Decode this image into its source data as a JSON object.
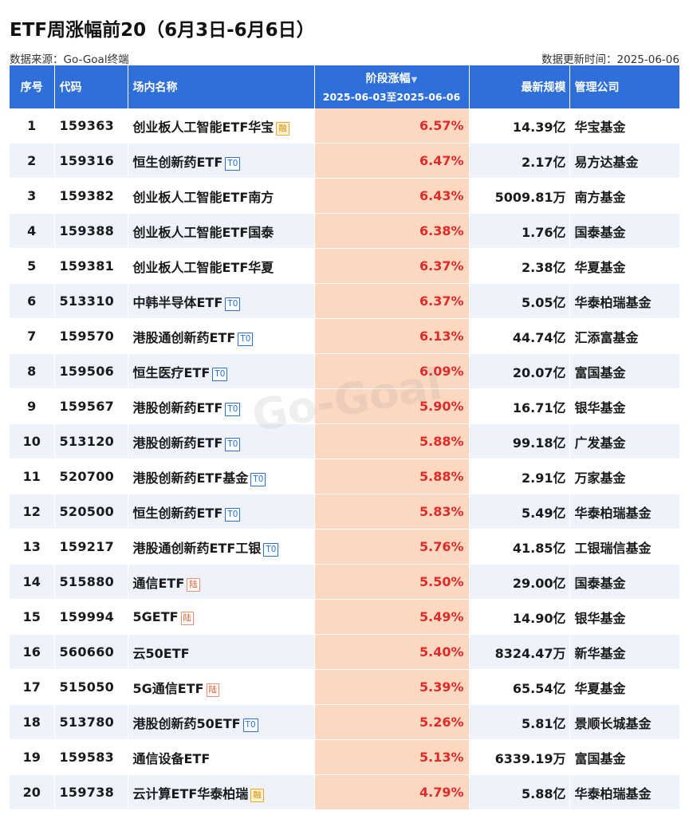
{
  "title": "ETF周涨幅前20（6月3日-6月6日）",
  "source": "数据来源：Go-Goal终端",
  "updated": "数据更新时间：2025-06-06",
  "watermark": "Go-Goal",
  "header": {
    "num": "序号",
    "code": "代码",
    "name": "场内名称",
    "change": "阶段涨幅",
    "change_range": "2025-06-03至2025-06-06",
    "size": "最新规模",
    "company": "管理公司"
  },
  "colors": {
    "header_bg": "#2e6fd9",
    "change_bg": "#fcd8c0",
    "change_text": "#e02a2a",
    "stripe": "#eef2fb"
  },
  "rows": [
    {
      "num": "1",
      "code": "159363",
      "name": "创业板人工智能ETF华宝",
      "badge": "融",
      "badge_type": "rong",
      "change": "6.57%",
      "size": "14.39亿",
      "company": "华宝基金"
    },
    {
      "num": "2",
      "code": "159316",
      "name": "恒生创新药ETF",
      "badge": "T0",
      "badge_type": "t0",
      "change": "6.47%",
      "size": "2.17亿",
      "company": "易方达基金"
    },
    {
      "num": "3",
      "code": "159382",
      "name": "创业板人工智能ETF南方",
      "badge": "",
      "badge_type": "",
      "change": "6.43%",
      "size": "5009.81万",
      "company": "南方基金"
    },
    {
      "num": "4",
      "code": "159388",
      "name": "创业板人工智能ETF国泰",
      "badge": "",
      "badge_type": "",
      "change": "6.38%",
      "size": "1.76亿",
      "company": "国泰基金"
    },
    {
      "num": "5",
      "code": "159381",
      "name": "创业板人工智能ETF华夏",
      "badge": "",
      "badge_type": "",
      "change": "6.37%",
      "size": "2.38亿",
      "company": "华夏基金"
    },
    {
      "num": "6",
      "code": "513310",
      "name": "中韩半导体ETF",
      "badge": "T0",
      "badge_type": "t0",
      "change": "6.37%",
      "size": "5.05亿",
      "company": "华泰柏瑞基金"
    },
    {
      "num": "7",
      "code": "159570",
      "name": "港股通创新药ETF",
      "badge": "T0",
      "badge_type": "t0",
      "change": "6.13%",
      "size": "44.74亿",
      "company": "汇添富基金"
    },
    {
      "num": "8",
      "code": "159506",
      "name": "恒生医疗ETF",
      "badge": "T0",
      "badge_type": "t0",
      "change": "6.09%",
      "size": "20.07亿",
      "company": "富国基金"
    },
    {
      "num": "9",
      "code": "159567",
      "name": "港股创新药ETF",
      "badge": "T0",
      "badge_type": "t0",
      "change": "5.90%",
      "size": "16.71亿",
      "company": "银华基金"
    },
    {
      "num": "10",
      "code": "513120",
      "name": "港股创新药ETF",
      "badge": "T0",
      "badge_type": "t0",
      "change": "5.88%",
      "size": "99.18亿",
      "company": "广发基金"
    },
    {
      "num": "11",
      "code": "520700",
      "name": "港股创新药ETF基金",
      "badge": "T0",
      "badge_type": "t0",
      "change": "5.88%",
      "size": "2.91亿",
      "company": "万家基金"
    },
    {
      "num": "12",
      "code": "520500",
      "name": "恒生创新药ETF",
      "badge": "T0",
      "badge_type": "t0",
      "change": "5.83%",
      "size": "5.49亿",
      "company": "华泰柏瑞基金"
    },
    {
      "num": "13",
      "code": "159217",
      "name": "港股通创新药ETF工银",
      "badge": "T0",
      "badge_type": "t0",
      "change": "5.76%",
      "size": "41.85亿",
      "company": "工银瑞信基金"
    },
    {
      "num": "14",
      "code": "515880",
      "name": "通信ETF",
      "badge": "陆",
      "badge_type": "lu",
      "change": "5.50%",
      "size": "29.00亿",
      "company": "国泰基金"
    },
    {
      "num": "15",
      "code": "159994",
      "name": "5GETF",
      "badge": "陆",
      "badge_type": "lu",
      "change": "5.49%",
      "size": "14.90亿",
      "company": "银华基金"
    },
    {
      "num": "16",
      "code": "560660",
      "name": "云50ETF",
      "badge": "",
      "badge_type": "",
      "change": "5.40%",
      "size": "8324.47万",
      "company": "新华基金"
    },
    {
      "num": "17",
      "code": "515050",
      "name": "5G通信ETF",
      "badge": "陆",
      "badge_type": "lu",
      "change": "5.39%",
      "size": "65.54亿",
      "company": "华夏基金"
    },
    {
      "num": "18",
      "code": "513780",
      "name": "港股创新药50ETF",
      "badge": "T0",
      "badge_type": "t0",
      "change": "5.26%",
      "size": "5.81亿",
      "company": "景顺长城基金"
    },
    {
      "num": "19",
      "code": "159583",
      "name": "通信设备ETF",
      "badge": "",
      "badge_type": "",
      "change": "5.13%",
      "size": "6339.19万",
      "company": "富国基金"
    },
    {
      "num": "20",
      "code": "159738",
      "name": "云计算ETF华泰柏瑞",
      "badge": "融",
      "badge_type": "rong",
      "change": "4.79%",
      "size": "5.88亿",
      "company": "华泰柏瑞基金"
    }
  ]
}
